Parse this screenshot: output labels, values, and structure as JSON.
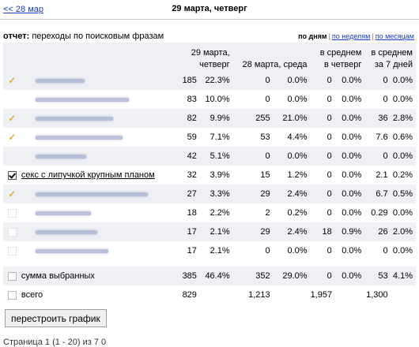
{
  "nav": {
    "prev_label": "<< 28 мар",
    "date_title": "29 марта, четверг"
  },
  "report": {
    "label": "отчет:",
    "value": "переходы по поисковым фразам",
    "periods": [
      {
        "label": "по дням",
        "active": true
      },
      {
        "label": "по неделям",
        "active": false
      },
      {
        "label": "по месяцам",
        "active": false
      }
    ]
  },
  "table": {
    "headers": {
      "today": "29 марта, четверг",
      "yesterday": "28 марта, среда",
      "avg_weekday_l1": "в среднем",
      "avg_weekday_l2": "в четверг",
      "avg_7d_l1": "в среднем",
      "avg_7d_l2": "за 7 дней"
    },
    "rows": [
      {
        "phrase": "",
        "checked": false,
        "mark": "tick",
        "today": "185",
        "today_pct": "22.3%",
        "yest": "0",
        "yest_pct": "0.0%",
        "wd": "0",
        "wd_pct": "0.0%",
        "w7": "0",
        "w7_pct": "0.0%"
      },
      {
        "phrase": "",
        "checked": false,
        "mark": "",
        "today": "83",
        "today_pct": "10.0%",
        "yest": "0",
        "yest_pct": "0.0%",
        "wd": "0",
        "wd_pct": "0.0%",
        "w7": "0",
        "w7_pct": "0.0%"
      },
      {
        "phrase": "",
        "checked": false,
        "mark": "tick",
        "today": "82",
        "today_pct": "9.9%",
        "yest": "255",
        "yest_pct": "21.0%",
        "wd": "0",
        "wd_pct": "0.0%",
        "w7": "36",
        "w7_pct": "2.8%"
      },
      {
        "phrase": "",
        "checked": false,
        "mark": "tick",
        "today": "59",
        "today_pct": "7.1%",
        "yest": "53",
        "yest_pct": "4.4%",
        "wd": "0",
        "wd_pct": "0.0%",
        "w7": "7.6",
        "w7_pct": "0.6%"
      },
      {
        "phrase": "",
        "checked": false,
        "mark": "",
        "today": "42",
        "today_pct": "5.1%",
        "yest": "0",
        "yest_pct": "0.0%",
        "wd": "0",
        "wd_pct": "0.0%",
        "w7": "0",
        "w7_pct": "0.0%"
      },
      {
        "phrase": "секс с липучкой крупным планом",
        "checked": true,
        "mark": "",
        "today": "32",
        "today_pct": "3.9%",
        "yest": "15",
        "yest_pct": "1.2%",
        "wd": "0",
        "wd_pct": "0.0%",
        "w7": "2.1",
        "w7_pct": "0.2%"
      },
      {
        "phrase": "",
        "checked": false,
        "mark": "tick",
        "today": "27",
        "today_pct": "3.3%",
        "yest": "29",
        "yest_pct": "2.4%",
        "wd": "0",
        "wd_pct": "0.0%",
        "w7": "6.7",
        "w7_pct": "0.5%"
      },
      {
        "phrase": "",
        "checked": false,
        "mark": "box",
        "today": "18",
        "today_pct": "2.2%",
        "yest": "2",
        "yest_pct": "0.2%",
        "wd": "0",
        "wd_pct": "0.0%",
        "w7": "0.29",
        "w7_pct": "0.0%"
      },
      {
        "phrase": "",
        "checked": false,
        "mark": "box",
        "today": "17",
        "today_pct": "2.1%",
        "yest": "29",
        "yest_pct": "2.4%",
        "wd": "18",
        "wd_pct": "0.9%",
        "w7": "26",
        "w7_pct": "2.0%"
      },
      {
        "phrase": "",
        "checked": false,
        "mark": "box",
        "today": "17",
        "today_pct": "2.1%",
        "yest": "0",
        "yest_pct": "0.0%",
        "wd": "0",
        "wd_pct": "0.0%",
        "w7": "0",
        "w7_pct": "0.0%"
      }
    ],
    "summary_selected": {
      "label": "сумма выбранных",
      "today": "385",
      "today_pct": "46.4%",
      "yest": "352",
      "yest_pct": "29.0%",
      "wd": "0",
      "wd_pct": "0.0%",
      "w7": "53",
      "w7_pct": "4.1%"
    },
    "summary_total": {
      "label": "всего",
      "today": "829",
      "yest": "1,213",
      "wd": "1,957",
      "w7": "1,300"
    }
  },
  "rebuild_button": "перестроить график",
  "footer_text": "Страница 1 (1 - 20) из 7 0",
  "colors": {
    "link": "#1a3dc1",
    "row_shade": "#eef0f3",
    "tick": "#d9b23a"
  }
}
